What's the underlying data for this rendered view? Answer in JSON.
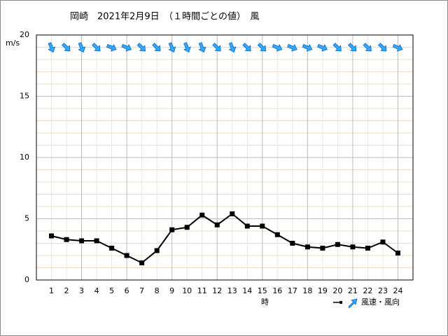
{
  "chart_data": {
    "type": "line",
    "title": "岡崎　2021年2月9日　（１時間ごとの値）　風",
    "y_unit": "m/s",
    "x_label": "時",
    "legend_label": "風速・風向",
    "x": [
      1,
      2,
      3,
      4,
      5,
      6,
      7,
      8,
      9,
      10,
      11,
      12,
      13,
      14,
      15,
      16,
      17,
      18,
      19,
      20,
      21,
      22,
      23,
      24
    ],
    "series": [
      {
        "color": "#000000",
        "values": [
          3.6,
          3.3,
          3.2,
          3.2,
          2.6,
          2.0,
          1.4,
          2.4,
          4.1,
          4.3,
          5.3,
          4.5,
          5.4,
          4.4,
          4.4,
          3.7,
          3.0,
          2.7,
          2.6,
          2.9,
          2.7,
          2.6,
          3.1,
          2.2
        ]
      },
      {
        "color": "#33aaff",
        "values": [
          338,
          315,
          338,
          315,
          293,
          293,
          315,
          315,
          338,
          338,
          338,
          315,
          338,
          315,
          315,
          293,
          293,
          293,
          293,
          315,
          315,
          315,
          315,
          293
        ]
      }
    ],
    "xlim": [
      0,
      25
    ],
    "xticks": [
      1,
      2,
      3,
      4,
      5,
      6,
      7,
      8,
      9,
      10,
      11,
      12,
      13,
      14,
      15,
      16,
      17,
      18,
      19,
      20,
      21,
      22,
      23,
      24
    ],
    "ylim": [
      0,
      20
    ],
    "yticks": [
      0,
      5,
      10,
      15,
      20
    ],
    "minor_yticks": [
      1,
      2,
      3,
      4,
      6,
      7,
      8,
      9,
      11,
      12,
      13,
      14,
      16,
      17,
      18,
      19
    ],
    "grid": true
  }
}
